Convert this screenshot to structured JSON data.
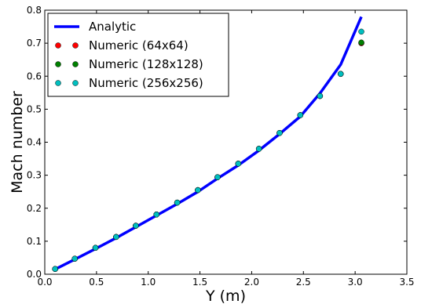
{
  "chart_data": {
    "type": "line",
    "title": "",
    "xlabel": "Y (m)",
    "ylabel": "Mach number",
    "xlim": [
      0.0,
      3.5
    ],
    "ylim": [
      0.0,
      0.8
    ],
    "xticks": [
      0.0,
      0.5,
      1.0,
      1.5,
      2.0,
      2.5,
      3.0,
      3.5
    ],
    "xtick_labels": [
      "0.0",
      "0.5",
      "1.0",
      "1.5",
      "2.0",
      "2.5",
      "3.0",
      "3.5"
    ],
    "yticks": [
      0.0,
      0.1,
      0.2,
      0.3,
      0.4,
      0.5,
      0.6,
      0.7,
      0.8
    ],
    "ytick_labels": [
      "0.0",
      "0.1",
      "0.2",
      "0.3",
      "0.4",
      "0.5",
      "0.6",
      "0.7",
      "0.8"
    ],
    "grid": false,
    "legend_position": "top-left",
    "series": [
      {
        "name": "Analytic",
        "style": "line",
        "color": "#0000ff",
        "x": [
          0.1,
          0.29,
          0.49,
          0.69,
          0.88,
          1.08,
          1.28,
          1.48,
          1.67,
          1.87,
          2.07,
          2.27,
          2.47,
          2.66,
          2.86,
          3.06
        ],
        "y": [
          0.015,
          0.045,
          0.077,
          0.11,
          0.143,
          0.178,
          0.213,
          0.25,
          0.29,
          0.33,
          0.375,
          0.425,
          0.478,
          0.548,
          0.635,
          0.78
        ]
      },
      {
        "name": "Numeric (64x64)",
        "style": "markers",
        "color": "#ff0000",
        "x": [
          0.1,
          0.29,
          0.49,
          0.69,
          0.88,
          1.08,
          1.28,
          1.48,
          1.67,
          1.87,
          2.07,
          2.27,
          2.47,
          2.66,
          2.86,
          3.06
        ],
        "y": [
          0.016,
          0.047,
          0.08,
          0.113,
          0.147,
          0.181,
          0.217,
          0.255,
          0.294,
          0.335,
          0.38,
          0.428,
          0.482,
          0.54,
          0.607,
          0.7
        ]
      },
      {
        "name": "Numeric (128x128)",
        "style": "markers",
        "color": "#008000",
        "x": [
          0.1,
          0.29,
          0.49,
          0.69,
          0.88,
          1.08,
          1.28,
          1.48,
          1.67,
          1.87,
          2.07,
          2.27,
          2.47,
          2.66,
          2.86,
          3.06
        ],
        "y": [
          0.016,
          0.047,
          0.08,
          0.113,
          0.147,
          0.181,
          0.217,
          0.255,
          0.294,
          0.335,
          0.38,
          0.428,
          0.482,
          0.54,
          0.607,
          0.702
        ]
      },
      {
        "name": "Numeric (256x256)",
        "style": "markers",
        "color": "#00bfbf",
        "x": [
          0.1,
          0.29,
          0.49,
          0.69,
          0.88,
          1.08,
          1.28,
          1.48,
          1.67,
          1.87,
          2.07,
          2.27,
          2.47,
          2.66,
          2.86,
          3.06
        ],
        "y": [
          0.016,
          0.047,
          0.08,
          0.113,
          0.147,
          0.181,
          0.217,
          0.255,
          0.294,
          0.335,
          0.38,
          0.428,
          0.482,
          0.54,
          0.607,
          0.735
        ]
      }
    ]
  }
}
